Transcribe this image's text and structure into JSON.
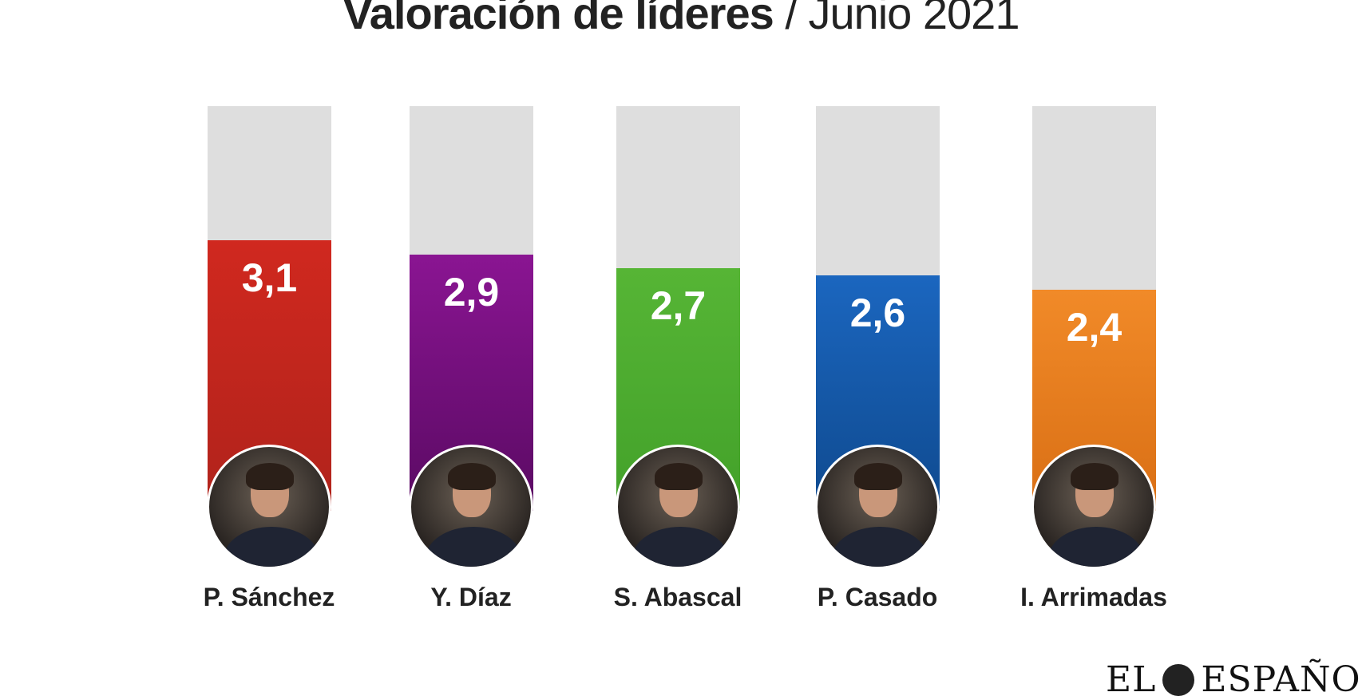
{
  "title": {
    "bold": "Valoración de líderes",
    "separator": " / ",
    "light": "Junio 2021"
  },
  "logo": {
    "text_left": "EL",
    "text_right": "ESPAÑOL"
  },
  "chart_data": {
    "type": "bar",
    "title": "Valoración de líderes / Junio 2021",
    "categories": [
      "P. Sánchez",
      "Y. Díaz",
      "S. Abascal",
      "P. Casado",
      "I. Arrimadas"
    ],
    "values": [
      3.1,
      2.9,
      2.7,
      2.6,
      2.4
    ],
    "value_labels": [
      "3,1",
      "2,9",
      "2,7",
      "2,6",
      "2,4"
    ],
    "colors": [
      "#d0281f",
      "#8a1592",
      "#56b535",
      "#1b66bf",
      "#f18a28"
    ],
    "colors_dark": [
      "#b0231b",
      "#5a0a63",
      "#43a12a",
      "#0f4a8f",
      "#d96f15"
    ],
    "ylim": [
      0,
      5
    ],
    "xlabel": "",
    "ylabel": "",
    "grid": false
  }
}
